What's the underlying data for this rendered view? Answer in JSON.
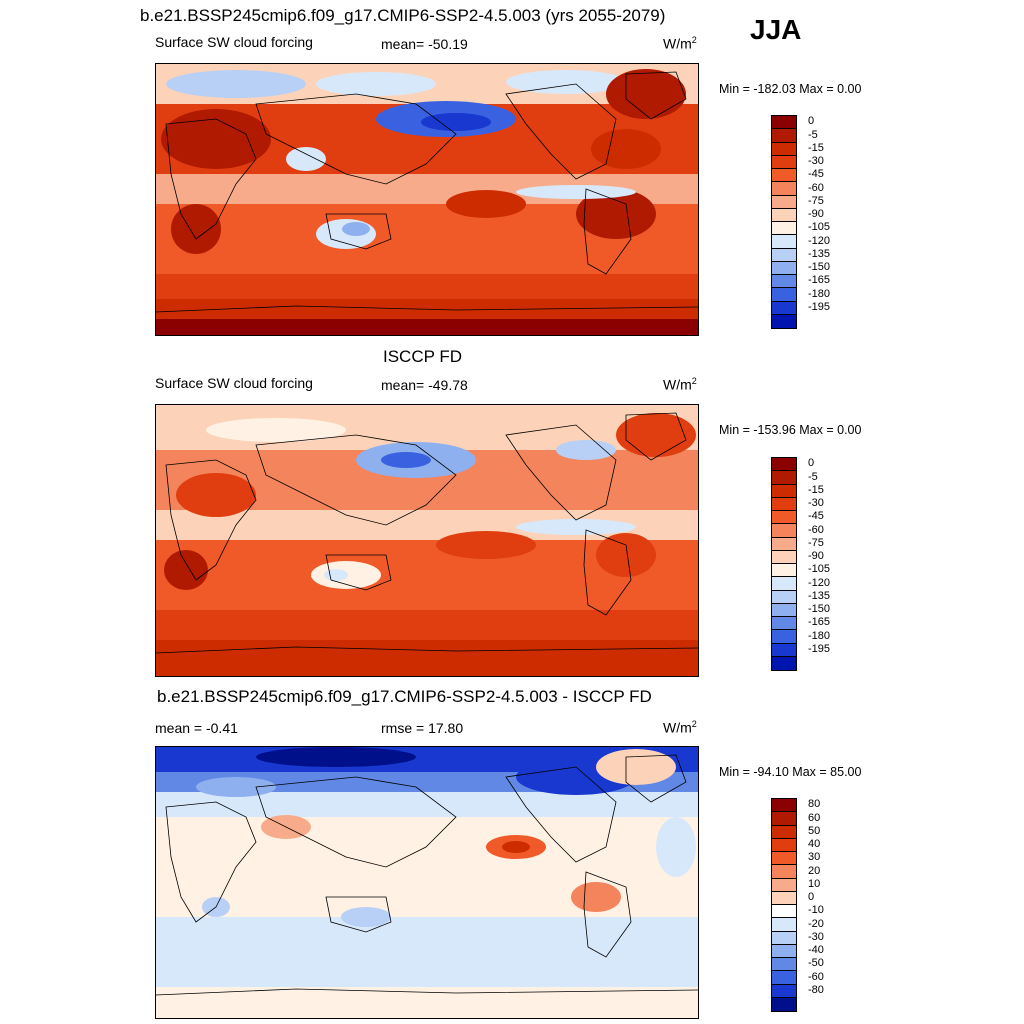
{
  "title": "b.e21.BSSP245cmip6.f09_g17.CMIP6-SSP2-4.5.003 (yrs 2055-2079)",
  "season": "JJA",
  "panels": [
    {
      "heading": "",
      "left_label": "Surface SW cloud forcing",
      "center_label": "mean= -50.19",
      "units_main": "W/m",
      "units_sup": "2",
      "minmax": "Min = -182.03 Max =   0.00",
      "colorbar": {
        "labels": [
          "0",
          "-5",
          "-15",
          "-30",
          "-45",
          "-60",
          "-75",
          "-90",
          "-105",
          "-120",
          "-135",
          "-150",
          "-165",
          "-180",
          "-195"
        ],
        "colors": [
          "#8b0000",
          "#b01a00",
          "#cc2c00",
          "#e03e10",
          "#f05a28",
          "#f4845c",
          "#f8ab8a",
          "#fcd3b8",
          "#fff2e4",
          "#d8e8fb",
          "#b8d0f6",
          "#8fb0ee",
          "#6288e6",
          "#3a62e0",
          "#1838d0",
          "#0014b0"
        ]
      }
    },
    {
      "heading": "ISCCP FD",
      "left_label": "Surface SW cloud forcing",
      "center_label": "mean= -49.78",
      "units_main": "W/m",
      "units_sup": "2",
      "minmax": "Min = -153.96 Max =   0.00",
      "colorbar": {
        "labels": [
          "0",
          "-5",
          "-15",
          "-30",
          "-45",
          "-60",
          "-75",
          "-90",
          "-105",
          "-120",
          "-135",
          "-150",
          "-165",
          "-180",
          "-195"
        ],
        "colors": [
          "#8b0000",
          "#b01a00",
          "#cc2c00",
          "#e03e10",
          "#f05a28",
          "#f4845c",
          "#f8ab8a",
          "#fcd3b8",
          "#fff2e4",
          "#d8e8fb",
          "#b8d0f6",
          "#8fb0ee",
          "#6288e6",
          "#3a62e0",
          "#1838d0",
          "#0014b0"
        ]
      }
    },
    {
      "heading": "b.e21.BSSP245cmip6.f09_g17.CMIP6-SSP2-4.5.003 - ISCCP FD",
      "left_label": "mean =  -0.41",
      "center_label": "rmse =  17.80",
      "units_main": "W/m",
      "units_sup": "2",
      "minmax": "Min = -94.10 Max =  85.00",
      "colorbar": {
        "labels": [
          "80",
          "60",
          "50",
          "40",
          "30",
          "20",
          "10",
          "0",
          "-10",
          "-20",
          "-30",
          "-40",
          "-50",
          "-60",
          "-80"
        ],
        "colors": [
          "#8b0000",
          "#b01a00",
          "#cc2c00",
          "#e03e10",
          "#f05a28",
          "#f4845c",
          "#f8ab8a",
          "#fcd3b8",
          "#ffffff",
          "#d8e8fb",
          "#b8d0f6",
          "#8fb0ee",
          "#6288e6",
          "#3a62e0",
          "#1838d0",
          "#00108a"
        ]
      }
    }
  ]
}
